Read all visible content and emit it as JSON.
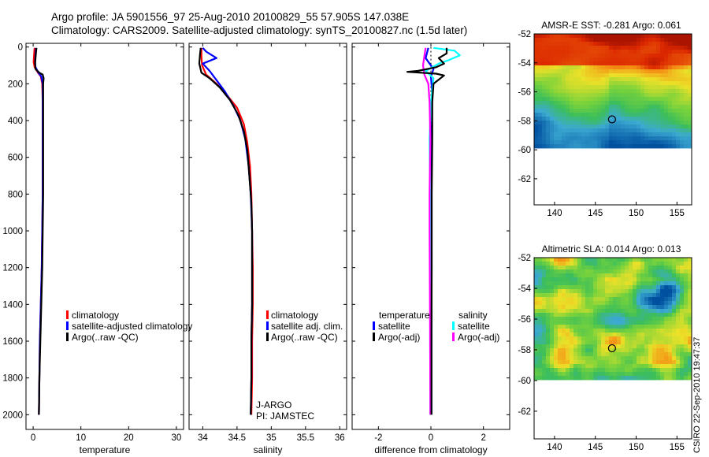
{
  "header": {
    "line1": "Argo profile: JA 5901556_97 25-Aug-2010 20100829_55 57.905S 147.038E",
    "line2": "Climatology: CARS2009. Satellite-adjusted climatology: synTS_20100827.nc (1.5d later)"
  },
  "colors": {
    "climatology": "#ff0000",
    "satellite": "#0000ff",
    "argo": "#000000",
    "sal_satellite": "#00ffff",
    "sal_argo": "#ff00ff"
  },
  "chart_data": [
    {
      "type": "line",
      "id": "temperature",
      "xlabel": "temperature",
      "xlim": [
        -1.5,
        31.5
      ],
      "ylim": [
        2080,
        -20
      ],
      "xticks": [
        0,
        10,
        20,
        30
      ],
      "xtick_labels": [
        "0",
        "10",
        "20",
        "30"
      ],
      "yticks": [
        0,
        200,
        400,
        600,
        800,
        1000,
        1200,
        1400,
        1600,
        1800,
        2000
      ],
      "ytick_labels": [
        "0",
        "200",
        "400",
        "600",
        "800",
        "1000",
        "1200",
        "1400",
        "1600",
        "1800",
        "2000"
      ],
      "legend": [
        "climatology",
        "satellite-adjusted climatology",
        "Argo(..raw -QC)"
      ],
      "series": [
        {
          "name": "climatology",
          "color": "#ff0000",
          "points": [
            [
              0.3,
              5
            ],
            [
              0.2,
              40
            ],
            [
              0.1,
              80
            ],
            [
              0.3,
              110
            ],
            [
              1.0,
              140
            ],
            [
              1.6,
              160
            ],
            [
              1.9,
              200
            ],
            [
              2.0,
              300
            ],
            [
              2.0,
              500
            ],
            [
              2.0,
              800
            ],
            [
              1.9,
              1000
            ],
            [
              1.8,
              1200
            ],
            [
              1.6,
              1400
            ],
            [
              1.4,
              1600
            ],
            [
              1.3,
              1800
            ],
            [
              1.2,
              2000
            ]
          ]
        },
        {
          "name": "satellite-adjusted climatology",
          "color": "#0000ff",
          "points": [
            [
              0.6,
              5
            ],
            [
              0.5,
              40
            ],
            [
              0.4,
              80
            ],
            [
              0.5,
              110
            ],
            [
              1.1,
              140
            ],
            [
              1.7,
              160
            ],
            [
              2.0,
              200
            ],
            [
              2.0,
              300
            ],
            [
              2.0,
              500
            ],
            [
              2.0,
              800
            ],
            [
              1.9,
              1000
            ],
            [
              1.8,
              1200
            ],
            [
              1.6,
              1400
            ],
            [
              1.4,
              1600
            ],
            [
              1.3,
              1800
            ],
            [
              1.2,
              2000
            ]
          ]
        },
        {
          "name": "Argo(..raw -QC)",
          "color": "#000000",
          "points": [
            [
              0.7,
              5
            ],
            [
              0.6,
              30
            ],
            [
              0.5,
              60
            ],
            [
              0.4,
              90
            ],
            [
              0.5,
              120
            ],
            [
              1.3,
              140
            ],
            [
              2.0,
              150
            ],
            [
              2.2,
              170
            ],
            [
              2.1,
              200
            ],
            [
              2.1,
              300
            ],
            [
              2.1,
              500
            ],
            [
              2.1,
              800
            ],
            [
              2.0,
              1000
            ],
            [
              1.9,
              1200
            ],
            [
              1.7,
              1400
            ],
            [
              1.5,
              1600
            ],
            [
              1.3,
              1800
            ],
            [
              1.2,
              2000
            ]
          ]
        }
      ]
    },
    {
      "type": "line",
      "id": "salinity",
      "xlabel": "salinity",
      "xlim": [
        33.8,
        36.1
      ],
      "ylim": [
        2080,
        -20
      ],
      "xticks": [
        34,
        34.5,
        35,
        35.5,
        36
      ],
      "xtick_labels": [
        "34",
        "34.5",
        "35",
        "35.5",
        "36"
      ],
      "legend": [
        "climatology",
        "satellite adj. clim.",
        "Argo(..raw -QC)"
      ],
      "annotation": [
        "J-ARGO",
        "PI: JAMSTEC"
      ],
      "series": [
        {
          "name": "climatology",
          "color": "#ff0000",
          "points": [
            [
              33.98,
              5
            ],
            [
              33.98,
              50
            ],
            [
              33.99,
              100
            ],
            [
              34.05,
              150
            ],
            [
              34.2,
              200
            ],
            [
              34.35,
              260
            ],
            [
              34.5,
              330
            ],
            [
              34.6,
              420
            ],
            [
              34.65,
              520
            ],
            [
              34.69,
              650
            ],
            [
              34.71,
              800
            ],
            [
              34.72,
              1000
            ],
            [
              34.73,
              1200
            ],
            [
              34.73,
              1400
            ],
            [
              34.72,
              1600
            ],
            [
              34.72,
              1800
            ],
            [
              34.71,
              2000
            ]
          ]
        },
        {
          "name": "satellite adj. clim.",
          "color": "#0000ff",
          "points": [
            [
              34.0,
              5
            ],
            [
              34.05,
              25
            ],
            [
              34.2,
              60
            ],
            [
              34.0,
              90
            ],
            [
              34.1,
              130
            ],
            [
              34.2,
              180
            ],
            [
              34.32,
              240
            ],
            [
              34.45,
              320
            ],
            [
              34.55,
              400
            ],
            [
              34.62,
              500
            ],
            [
              34.67,
              650
            ],
            [
              34.7,
              800
            ],
            [
              34.72,
              1000
            ],
            [
              34.72,
              1200
            ],
            [
              34.72,
              1400
            ],
            [
              34.71,
              1600
            ],
            [
              34.71,
              1800
            ],
            [
              34.7,
              2000
            ]
          ]
        },
        {
          "name": "Argo(..raw -QC)",
          "color": "#000000",
          "points": [
            [
              33.97,
              5
            ],
            [
              33.96,
              40
            ],
            [
              33.95,
              90
            ],
            [
              33.98,
              140
            ],
            [
              34.1,
              170
            ],
            [
              34.25,
              220
            ],
            [
              34.4,
              290
            ],
            [
              34.52,
              370
            ],
            [
              34.6,
              460
            ],
            [
              34.65,
              560
            ],
            [
              34.68,
              700
            ],
            [
              34.71,
              850
            ],
            [
              34.72,
              1000
            ],
            [
              34.72,
              1200
            ],
            [
              34.72,
              1400
            ],
            [
              34.71,
              1600
            ],
            [
              34.71,
              1800
            ],
            [
              34.7,
              2000
            ]
          ]
        }
      ]
    },
    {
      "type": "line",
      "id": "difference",
      "xlabel": "difference from climatology",
      "xlim": [
        -3.0,
        3.0
      ],
      "ylim": [
        2080,
        -20
      ],
      "xticks": [
        -2,
        0,
        2
      ],
      "xtick_labels": [
        "-2",
        "0",
        "2"
      ],
      "legend_headers": [
        "temperature",
        "salinity"
      ],
      "legend": [
        "satellite",
        "Argo(-adj)",
        "satellite",
        "Argo(-adj)"
      ],
      "series": [
        {
          "name": "temperature satellite",
          "color": "#0000ff",
          "points": [
            [
              -0.1,
              5
            ],
            [
              -0.2,
              60
            ],
            [
              0.1,
              120
            ],
            [
              0.0,
              160
            ],
            [
              0.05,
              250
            ],
            [
              0.03,
              500
            ],
            [
              0.02,
              1000
            ],
            [
              0.02,
              1500
            ],
            [
              0.02,
              2000
            ]
          ]
        },
        {
          "name": "salinity satellite",
          "color": "#00ffff",
          "points": [
            [
              0.1,
              5
            ],
            [
              0.9,
              20
            ],
            [
              1.1,
              45
            ],
            [
              0.7,
              70
            ],
            [
              0.3,
              90
            ],
            [
              -0.2,
              130
            ],
            [
              0.1,
              170
            ],
            [
              0.0,
              300
            ],
            [
              -0.05,
              500
            ],
            [
              -0.03,
              800
            ],
            [
              -0.02,
              1200
            ],
            [
              -0.03,
              1600
            ],
            [
              -0.02,
              2000
            ]
          ]
        },
        {
          "name": "salinity Argo(-adj)",
          "color": "#ff00ff",
          "points": [
            [
              -0.2,
              5
            ],
            [
              -0.25,
              50
            ],
            [
              -0.3,
              100
            ],
            [
              -0.25,
              150
            ],
            [
              -0.1,
              200
            ],
            [
              -0.05,
              300
            ],
            [
              -0.02,
              500
            ],
            [
              -0.05,
              800
            ],
            [
              -0.05,
              1000
            ],
            [
              -0.03,
              1600
            ],
            [
              -0.02,
              2000
            ]
          ]
        },
        {
          "name": "temperature Argo(-adj)",
          "color": "#000000",
          "points": [
            [
              0.6,
              5
            ],
            [
              0.6,
              35
            ],
            [
              0.3,
              60
            ],
            [
              0.5,
              90
            ],
            [
              0.2,
              110
            ],
            [
              -0.5,
              130
            ],
            [
              -0.9,
              135
            ],
            [
              0.2,
              145
            ],
            [
              0.5,
              155
            ],
            [
              0.1,
              200
            ],
            [
              0.05,
              300
            ],
            [
              0.05,
              500
            ],
            [
              0.03,
              800
            ],
            [
              0.03,
              1200
            ],
            [
              0.02,
              1600
            ],
            [
              0.02,
              2000
            ]
          ]
        }
      ]
    },
    {
      "type": "heatmap",
      "id": "sst",
      "title": "AMSR-E SST: -0.281 Argo: 0.061",
      "xlim": [
        137.5,
        156.8
      ],
      "ylim": [
        -63.8,
        -52
      ],
      "xticks": [
        140,
        145,
        150,
        155
      ],
      "xtick_labels": [
        "140",
        "145",
        "150",
        "155"
      ],
      "yticks": [
        -52,
        -54,
        -56,
        -58,
        -60,
        -62
      ],
      "ytick_labels": [
        "-52",
        "-54",
        "-56",
        "-58",
        "-60",
        "-62"
      ],
      "data_ylim": [
        -60,
        -52
      ],
      "marker": [
        147.04,
        -57.9
      ]
    },
    {
      "type": "heatmap",
      "id": "sla",
      "title": "Altimetric SLA: 0.014 Argo: 0.013",
      "xlim": [
        137.5,
        156.8
      ],
      "ylim": [
        -63.8,
        -52
      ],
      "xticks": [
        140,
        145,
        150,
        155
      ],
      "xtick_labels": [
        "140",
        "145",
        "150",
        "155"
      ],
      "yticks": [
        -52,
        -54,
        -56,
        -58,
        -60,
        -62
      ],
      "ytick_labels": [
        "-52",
        "-54",
        "-56",
        "-58",
        "-60",
        "-62"
      ],
      "data_ylim": [
        -60,
        -52
      ],
      "marker": [
        147.04,
        -57.9
      ]
    }
  ],
  "side_label": "CSIRO 22-Sep-2010 19:47:37"
}
